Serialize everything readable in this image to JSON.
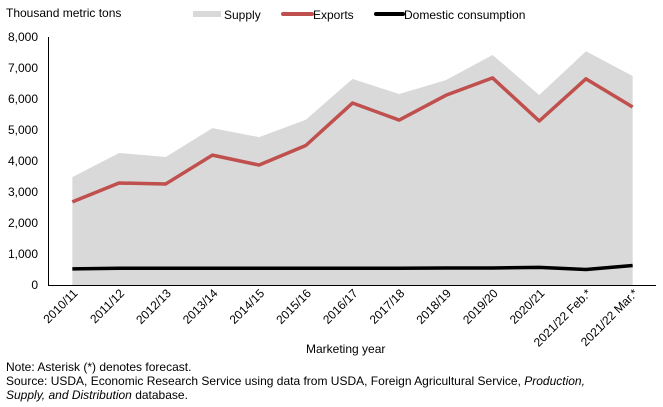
{
  "chart_data": {
    "type": "area",
    "title": "",
    "ylabel": "Thousand metric tons",
    "xlabel": "Marketing year",
    "ylim": [
      0,
      8000
    ],
    "yticks": [
      0,
      1000,
      2000,
      3000,
      4000,
      5000,
      6000,
      7000,
      8000
    ],
    "ytick_labels": [
      "0",
      "1,000",
      "2,000",
      "3,000",
      "4,000",
      "5,000",
      "6,000",
      "7,000",
      "8,000"
    ],
    "grid": false,
    "legend_position": "top",
    "categories": [
      "2010/11",
      "2011/12",
      "2012/13",
      "2013/14",
      "2014/15",
      "2015/16",
      "2016/17",
      "2017/18",
      "2018/19",
      "2019/20",
      "2020/21",
      "2021/22 Feb.*",
      "2021/22 Mar.*"
    ],
    "series": [
      {
        "name": "Supply",
        "kind": "area",
        "color": "#D9D9D9",
        "values": [
          3480,
          4260,
          4130,
          5060,
          4770,
          5330,
          6650,
          6160,
          6610,
          7420,
          6130,
          7540,
          6740
        ]
      },
      {
        "name": "Exports",
        "kind": "line",
        "color": "#C0504D",
        "values": [
          2680,
          3290,
          3260,
          4190,
          3870,
          4500,
          5870,
          5320,
          6120,
          6680,
          5290,
          6650,
          5740
        ]
      },
      {
        "name": "Domestic consumption",
        "kind": "line",
        "color": "#000000",
        "values": [
          520,
          540,
          540,
          540,
          540,
          540,
          540,
          540,
          550,
          550,
          570,
          500,
          630
        ]
      }
    ]
  },
  "legend": {
    "items": [
      "Supply",
      "Exports",
      "Domestic consumption"
    ]
  },
  "footer": {
    "note": "Note: Asterisk (*) denotes forecast.",
    "source_prefix": "Source: USDA, Economic Research Service using data from USDA, Foreign Agricultural Service, ",
    "source_italic_1": "Production,",
    "source_italic_2": "Supply, and Distribution",
    "source_suffix": " database."
  }
}
